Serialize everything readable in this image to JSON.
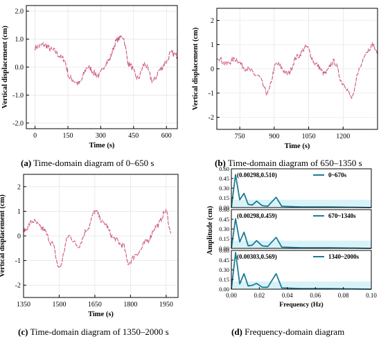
{
  "colors": {
    "time_series": "#cc5577",
    "freq_series": "#1f7a96",
    "freq_band": "#d8f3f8",
    "axis": "#000000",
    "grid": "#dddddd"
  },
  "captions": [
    {
      "letter": "(a)",
      "text": " Time-domain diagram of 0–650 s"
    },
    {
      "letter": "(b)",
      "text": " Time-domain diagram of 650–1350 s"
    },
    {
      "letter": "(c)",
      "text": " Time-domain diagram of 1350–2000 s"
    },
    {
      "letter": "(d)",
      "text": " Frequency-domain diagram"
    }
  ],
  "chart_data": [
    {
      "id": "a",
      "type": "line",
      "xlabel": "Time (s)",
      "ylabel": "Vertical displacement (cm)",
      "xlim": [
        -40,
        650
      ],
      "ylim": [
        -2.2,
        2.2
      ],
      "xticks": [
        0,
        150,
        300,
        450,
        600
      ],
      "xtick_labels": [
        "0",
        "150",
        "300",
        "450",
        "600"
      ],
      "yticks": [
        -2.0,
        -1.0,
        0.0,
        1.0,
        2.0
      ],
      "ytick_labels": [
        "-2.0",
        "-1.0",
        "0.0",
        "1.0",
        "2.0"
      ],
      "grid": true,
      "series": [
        {
          "x": [
            0,
            40,
            80,
            130,
            160,
            200,
            240,
            290,
            330,
            380,
            400,
            430,
            470,
            500,
            540,
            570,
            600,
            620,
            650
          ],
          "y": [
            0.7,
            0.8,
            0.6,
            0.3,
            -0.4,
            -0.6,
            0.0,
            -0.3,
            0.2,
            1.0,
            1.1,
            0.1,
            -0.4,
            0.1,
            -0.5,
            -0.1,
            0.2,
            0.5,
            0.4
          ]
        }
      ]
    },
    {
      "id": "b",
      "type": "line",
      "xlabel": "Time (s)",
      "ylabel": "Vertical displacement (cm)",
      "xlim": [
        650,
        1350
      ],
      "ylim": [
        -2.5,
        2.5
      ],
      "xticks": [
        750,
        900,
        1050,
        1200
      ],
      "xtick_labels": [
        "750",
        "900",
        "1050",
        "1200"
      ],
      "yticks": [
        -2,
        -1,
        0,
        1,
        2
      ],
      "ytick_labels": [
        "-2",
        "-1",
        "0",
        "1",
        "2"
      ],
      "grid": true,
      "series": [
        {
          "x": [
            650,
            690,
            730,
            780,
            830,
            870,
            910,
            960,
            1000,
            1040,
            1080,
            1120,
            1160,
            1200,
            1240,
            1270,
            1300,
            1330,
            1350
          ],
          "y": [
            0.5,
            0.2,
            0.4,
            0.0,
            -0.3,
            -1.0,
            0.2,
            -0.2,
            0.5,
            0.9,
            0.2,
            -0.2,
            0.3,
            -0.6,
            -1.2,
            0.0,
            0.7,
            1.0,
            0.6
          ]
        }
      ]
    },
    {
      "id": "c",
      "type": "line",
      "xlabel": "Time (s)",
      "ylabel": "Vertical displacement (cm)",
      "xlim": [
        1350,
        2000
      ],
      "ylim": [
        -2.5,
        2.5
      ],
      "xticks": [
        1350,
        1500,
        1650,
        1800,
        1950
      ],
      "xtick_labels": [
        "1350",
        "1500",
        "1650",
        "1800",
        "1950"
      ],
      "yticks": [
        -2,
        -1,
        0,
        1,
        2
      ],
      "ytick_labels": [
        "-2",
        "-1",
        "0",
        "1",
        "2"
      ],
      "grid": true,
      "series": [
        {
          "x": [
            1350,
            1390,
            1430,
            1470,
            1500,
            1540,
            1580,
            1620,
            1650,
            1690,
            1730,
            1770,
            1790,
            1830,
            1870,
            1910,
            1950,
            1970
          ],
          "y": [
            0.2,
            0.6,
            0.3,
            -0.3,
            -1.3,
            0.0,
            -0.4,
            0.3,
            1.0,
            0.5,
            -0.1,
            -0.4,
            -1.1,
            -0.7,
            -0.2,
            0.4,
            1.0,
            0.1
          ]
        }
      ]
    },
    {
      "id": "d",
      "type": "line",
      "xlabel": "Frequency (Hz)",
      "ylabel": "Amplitude (cm)",
      "xlim": [
        0,
        0.1
      ],
      "ylim": [
        0,
        0.6
      ],
      "xticks": [
        0.0,
        0.02,
        0.04,
        0.06,
        0.08,
        0.1
      ],
      "xtick_labels": [
        "0.00",
        "0.02",
        "0.04",
        "0.06",
        "0.08",
        "0.10"
      ],
      "yticks": [
        0.0,
        0.15,
        0.3,
        0.45,
        0.6
      ],
      "ytick_labels": [
        "0.00",
        "0.15",
        "0.30",
        "0.45",
        "0.60"
      ],
      "panels": [
        {
          "legend": "0~670s",
          "annotation": "(0.00298,0.510)",
          "x": [
            0,
            0.00298,
            0.006,
            0.009,
            0.012,
            0.015,
            0.018,
            0.022,
            0.026,
            0.032,
            0.036,
            0.05,
            0.07,
            0.1
          ],
          "y": [
            0.0,
            0.51,
            0.12,
            0.22,
            0.05,
            0.04,
            0.1,
            0.03,
            0.02,
            0.16,
            0.02,
            0.01,
            0.01,
            0.0
          ]
        },
        {
          "legend": "670~1340s",
          "annotation": "(0.00298,0.459)",
          "x": [
            0,
            0.00298,
            0.006,
            0.009,
            0.012,
            0.015,
            0.018,
            0.022,
            0.026,
            0.032,
            0.036,
            0.05,
            0.07,
            0.1
          ],
          "y": [
            0.0,
            0.459,
            0.1,
            0.25,
            0.04,
            0.05,
            0.12,
            0.04,
            0.03,
            0.17,
            0.02,
            0.01,
            0.01,
            0.0
          ]
        },
        {
          "legend": "1340~2000s",
          "annotation": "(0.00303,0.569)",
          "x": [
            0,
            0.00303,
            0.006,
            0.009,
            0.012,
            0.015,
            0.018,
            0.022,
            0.026,
            0.032,
            0.036,
            0.05,
            0.07,
            0.1
          ],
          "y": [
            0.0,
            0.569,
            0.08,
            0.24,
            0.05,
            0.06,
            0.09,
            0.03,
            0.03,
            0.24,
            0.02,
            0.01,
            0.01,
            0.0
          ]
        }
      ]
    }
  ]
}
